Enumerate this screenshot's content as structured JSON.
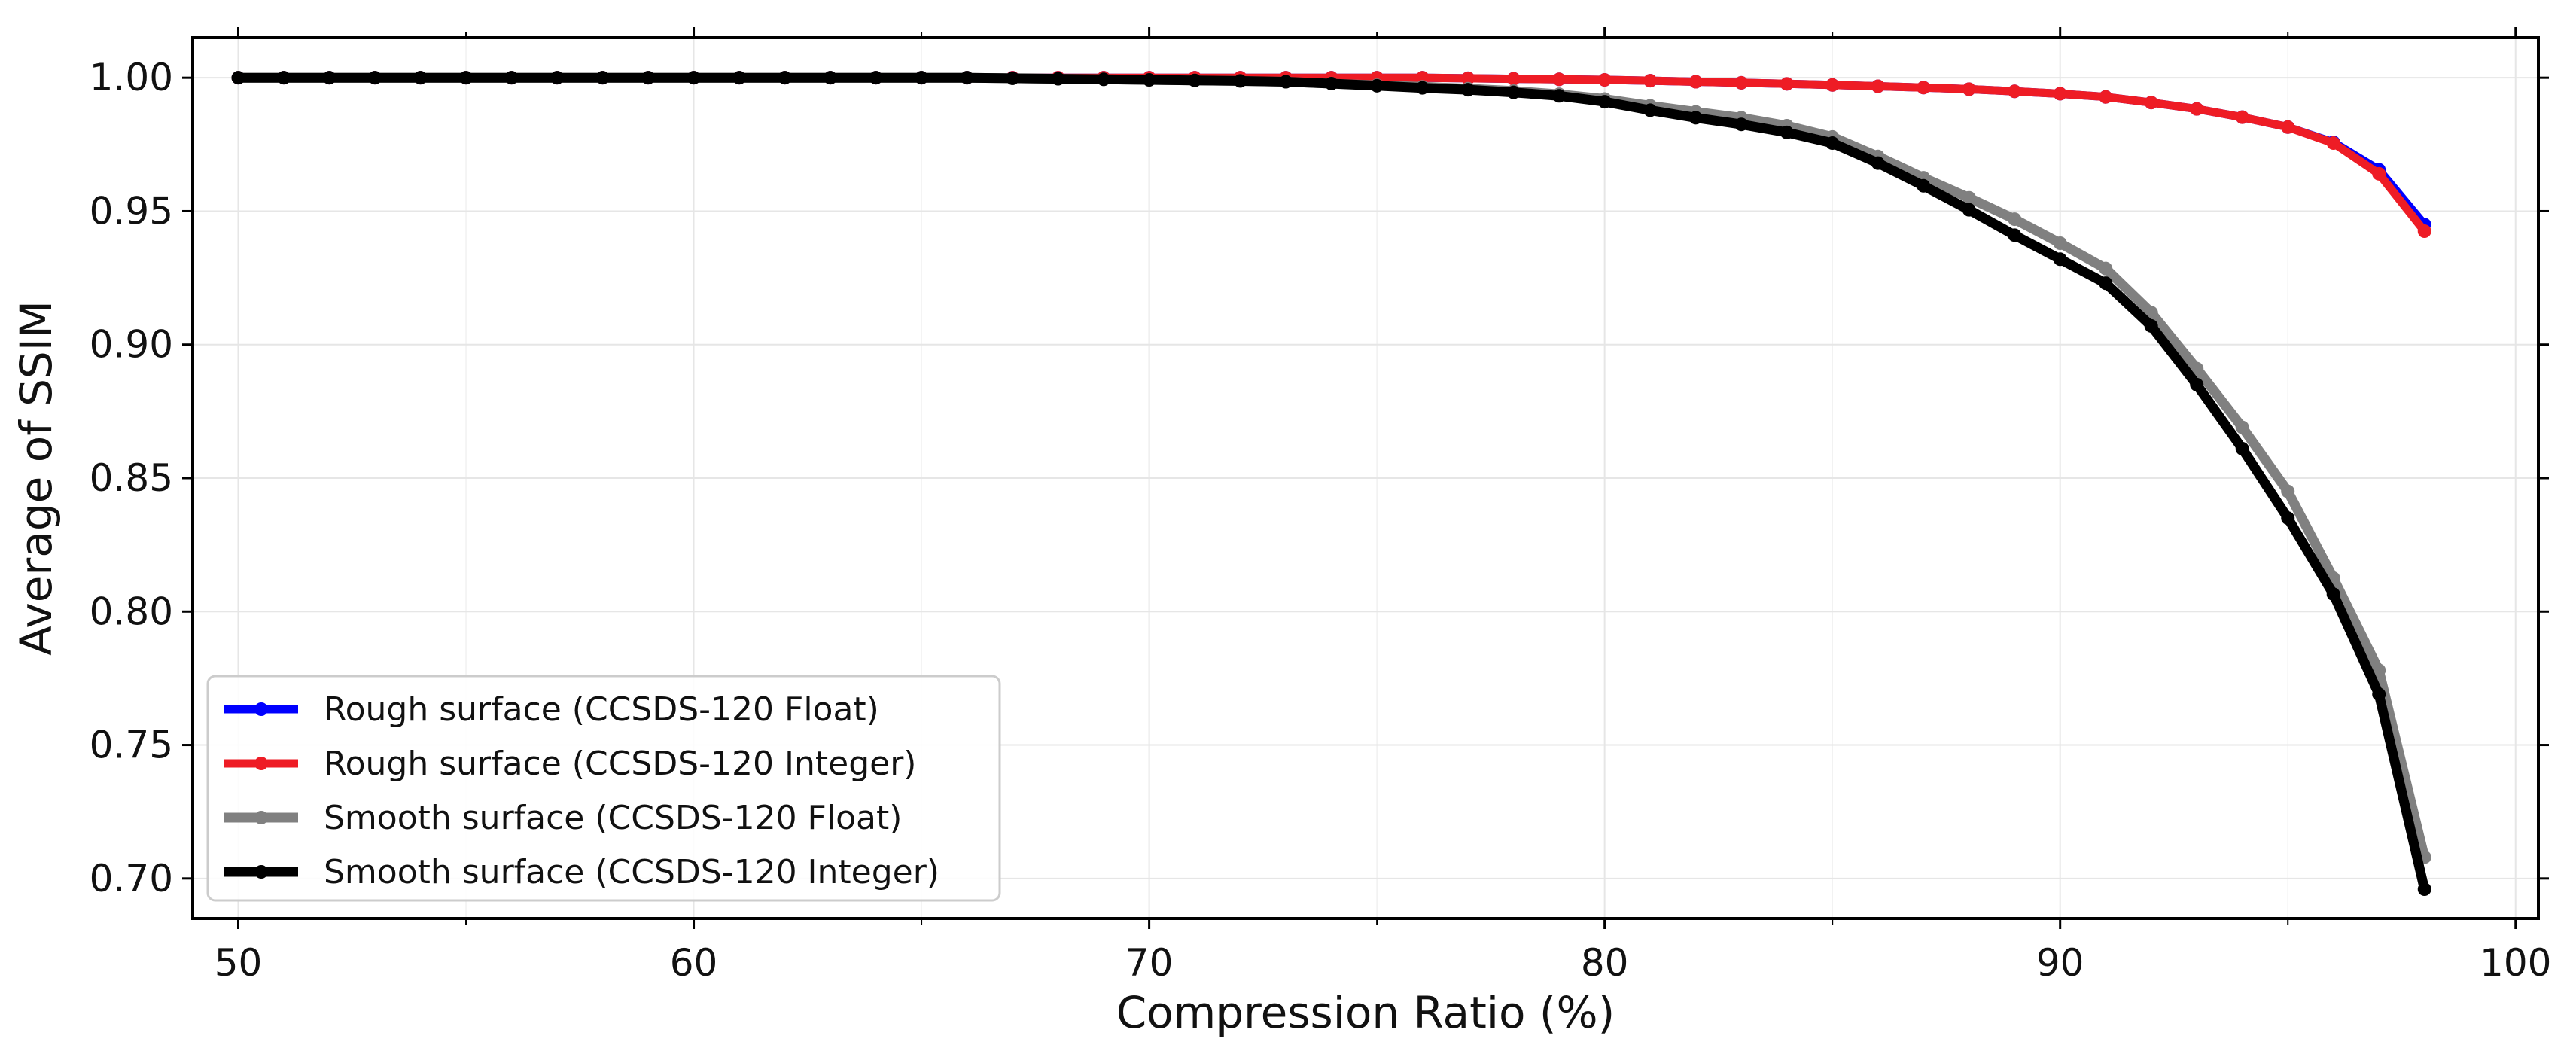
{
  "chart_data": {
    "type": "line",
    "title": "",
    "xlabel": "Compression Ratio (%)",
    "ylabel": "Average of SSIM",
    "xlim": [
      49,
      100.5
    ],
    "ylim": [
      0.685,
      1.015
    ],
    "x_ticks": [
      50,
      60,
      70,
      80,
      90,
      100
    ],
    "y_ticks": [
      0.7,
      0.75,
      0.8,
      0.85,
      0.9,
      0.95,
      1.0
    ],
    "x_tick_labels": [
      "50",
      "60",
      "70",
      "80",
      "90",
      "100"
    ],
    "y_tick_labels": [
      "0.70",
      "0.75",
      "0.80",
      "0.85",
      "0.90",
      "0.95",
      "1.00"
    ],
    "grid": true,
    "legend_position": "lower-left",
    "x": [
      50,
      51,
      52,
      53,
      54,
      55,
      56,
      57,
      58,
      59,
      60,
      61,
      62,
      63,
      64,
      65,
      66,
      67,
      68,
      69,
      70,
      71,
      72,
      73,
      74,
      75,
      76,
      77,
      78,
      79,
      80,
      81,
      82,
      83,
      84,
      85,
      86,
      87,
      88,
      89,
      90,
      91,
      92,
      93,
      94,
      95,
      96,
      97,
      98
    ],
    "series": [
      {
        "name": "Rough surface (CCSDS-120 Float)",
        "color": "#0000ff",
        "line_width": "medium",
        "values": [
          1.0,
          1.0,
          1.0,
          1.0,
          1.0,
          1.0,
          1.0,
          1.0,
          1.0,
          1.0,
          1.0,
          1.0,
          1.0,
          1.0,
          1.0,
          1.0,
          1.0,
          1.0,
          1.0,
          1.0,
          1.0,
          1.0,
          1.0,
          1.0,
          1.0,
          1.0,
          1.0,
          0.9998,
          0.9996,
          0.9994,
          0.9992,
          0.9989,
          0.9985,
          0.9981,
          0.9977,
          0.9973,
          0.9968,
          0.9963,
          0.9957,
          0.9949,
          0.994,
          0.9928,
          0.9907,
          0.9883,
          0.9852,
          0.9815,
          0.9758,
          0.9655,
          0.945
        ]
      },
      {
        "name": "Rough surface (CCSDS-120 Integer)",
        "color": "#ee1c25",
        "line_width": "medium",
        "values": [
          1.0,
          1.0,
          1.0,
          1.0,
          1.0,
          1.0,
          1.0,
          1.0,
          1.0,
          1.0,
          1.0,
          1.0,
          1.0,
          1.0,
          1.0,
          1.0,
          1.0,
          1.0,
          1.0,
          1.0,
          1.0,
          1.0,
          1.0,
          1.0,
          1.0,
          1.0,
          1.0,
          0.9998,
          0.9996,
          0.9994,
          0.9992,
          0.9989,
          0.9985,
          0.9981,
          0.9977,
          0.9973,
          0.9968,
          0.9963,
          0.9957,
          0.9949,
          0.994,
          0.9928,
          0.9907,
          0.9883,
          0.9852,
          0.9815,
          0.9755,
          0.964,
          0.9425
        ]
      },
      {
        "name": "Smooth surface (CCSDS-120 Float)",
        "color": "#808080",
        "line_width": "thick",
        "values": [
          1.0,
          1.0,
          1.0,
          1.0,
          1.0,
          1.0,
          1.0,
          1.0,
          1.0,
          1.0,
          1.0,
          1.0,
          1.0,
          1.0,
          1.0,
          1.0,
          1.0,
          0.9998,
          0.9996,
          0.9994,
          0.9992,
          0.999,
          0.9988,
          0.9985,
          0.9978,
          0.9972,
          0.9966,
          0.9959,
          0.995,
          0.9938,
          0.992,
          0.9895,
          0.9872,
          0.985,
          0.982,
          0.9778,
          0.9705,
          0.9625,
          0.955,
          0.947,
          0.938,
          0.9285,
          0.912,
          0.891,
          0.869,
          0.845,
          0.8125,
          0.778,
          0.708
        ]
      },
      {
        "name": "Smooth surface (CCSDS-120 Integer)",
        "color": "#000000",
        "line_width": "thick",
        "values": [
          1.0,
          1.0,
          1.0,
          1.0,
          1.0,
          1.0,
          1.0,
          1.0,
          1.0,
          1.0,
          1.0,
          1.0,
          1.0,
          1.0,
          1.0,
          1.0,
          1.0,
          0.9998,
          0.9996,
          0.9994,
          0.9992,
          0.999,
          0.9988,
          0.9985,
          0.9978,
          0.997,
          0.9962,
          0.9955,
          0.9945,
          0.9932,
          0.991,
          0.9878,
          0.985,
          0.9825,
          0.9795,
          0.9755,
          0.968,
          0.9595,
          0.9505,
          0.941,
          0.932,
          0.923,
          0.907,
          0.885,
          0.861,
          0.835,
          0.8065,
          0.769,
          0.696
        ]
      }
    ]
  }
}
